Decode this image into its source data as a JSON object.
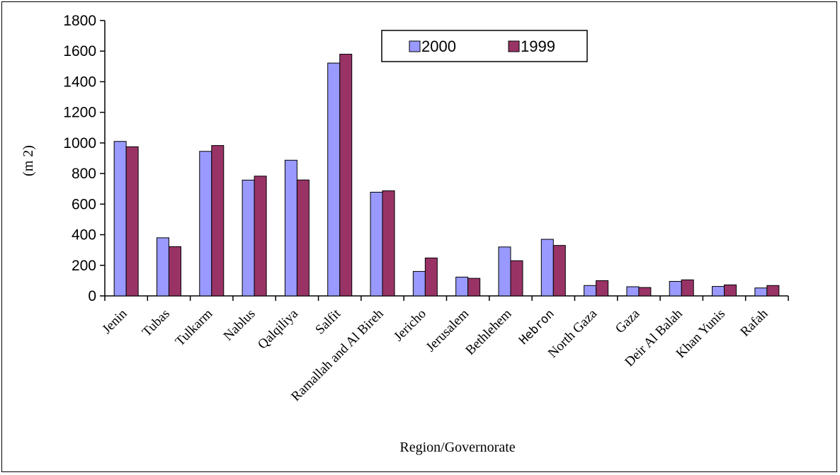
{
  "chart_data": {
    "type": "bar",
    "title": "",
    "xlabel": "Region/Governorate",
    "ylabel": "(m 2)",
    "ylim": [
      0,
      1800
    ],
    "yticks": [
      0,
      200,
      400,
      600,
      800,
      1000,
      1200,
      1400,
      1600,
      1800
    ],
    "grid": false,
    "legend_position": "top-center",
    "categories": [
      "Jenin",
      "Tubas",
      "Tulkarm",
      "Nablus",
      "Qalqiliya",
      "Salfit",
      "Ramallah and Al Bireh",
      "Jericho",
      "Jerusalem",
      "Bethlehem",
      "Hebron",
      "North Gaza",
      "Gaza",
      "Deir Al Balah",
      "Khan Yunis",
      "Rafah"
    ],
    "series": [
      {
        "name": "2000",
        "color": "#9999ff",
        "values": [
          1010,
          380,
          945,
          757,
          887,
          1522,
          678,
          160,
          123,
          320,
          370,
          68,
          60,
          95,
          62,
          52
        ]
      },
      {
        "name": "1999",
        "color": "#993366",
        "values": [
          975,
          322,
          983,
          783,
          758,
          1580,
          687,
          248,
          115,
          230,
          330,
          100,
          55,
          105,
          72,
          68
        ]
      }
    ]
  }
}
